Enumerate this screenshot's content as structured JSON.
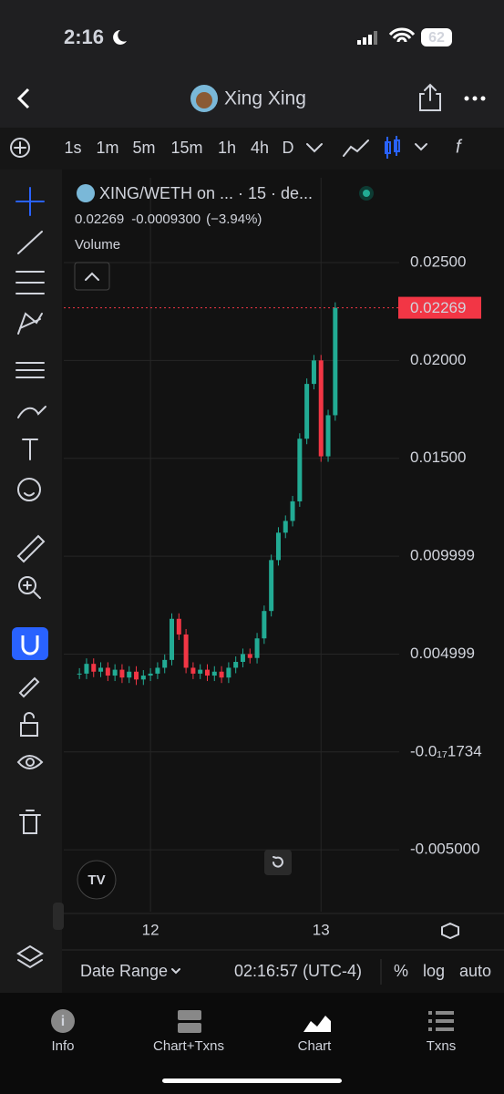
{
  "status_bar": {
    "time": "2:16",
    "battery": "62"
  },
  "header": {
    "title": "Xing Xing"
  },
  "toolbar": {
    "timeframes": [
      "1s",
      "1m",
      "5m",
      "15m",
      "1h",
      "4h",
      "D"
    ]
  },
  "chart": {
    "type": "candlestick",
    "pair": "XING/WETH on ... · 15 · de...",
    "change": "-0.0009300",
    "change_pct": "(−3.94%)",
    "volume_label": "Volume",
    "x": [
      -10,
      -9,
      -8,
      -7,
      -6,
      -5,
      -4,
      -3,
      -2,
      -1,
      0,
      1,
      2,
      3,
      4,
      5,
      6,
      7,
      8,
      9,
      10,
      11,
      12,
      13,
      14,
      15,
      16,
      17,
      18,
      19,
      20,
      21,
      22,
      23,
      24,
      25,
      26
    ],
    "closes": [
      0.004,
      0.0045,
      0.0041,
      0.0043,
      0.0039,
      0.0042,
      0.0038,
      0.0041,
      0.0037,
      0.0039,
      0.004,
      0.0043,
      0.0047,
      0.0068,
      0.006,
      0.0043,
      0.004,
      0.0042,
      0.0039,
      0.0041,
      0.0038,
      0.0043,
      0.0046,
      0.005,
      0.0048,
      0.0058,
      0.0072,
      0.0098,
      0.0112,
      0.0118,
      0.0128,
      0.016,
      0.0188,
      0.02,
      0.0151,
      0.0172,
      0.02269
    ],
    "up_color": "#22ab94",
    "down_color": "#f23645",
    "xlim": [
      -12.2,
      35
    ],
    "xticks": [
      {
        "value": 0,
        "label": "12"
      },
      {
        "value": 24,
        "label": "13"
      }
    ],
    "ylim": [
      -0.00816,
      0.02933
    ],
    "yticks": [
      {
        "value": 0.025,
        "label": "0.02500"
      },
      {
        "value": 0.02,
        "label": "0.02000"
      },
      {
        "value": 0.015,
        "label": "0.01500"
      },
      0.009999,
      0.004999,
      {
        "value": -1.734e-18,
        "label": "-0.0₁₇1734"
      },
      {
        "value": -0.005,
        "label": "-0.005000"
      }
    ],
    "grid": true
  },
  "footer": {
    "date_range": "Date Range",
    "clock": "02:16:57 (UTC-4)",
    "percent": "%",
    "log": "log",
    "auto": "auto"
  },
  "tabs": [
    "Info",
    "Chart+Txns",
    "Chart",
    "Txns"
  ]
}
